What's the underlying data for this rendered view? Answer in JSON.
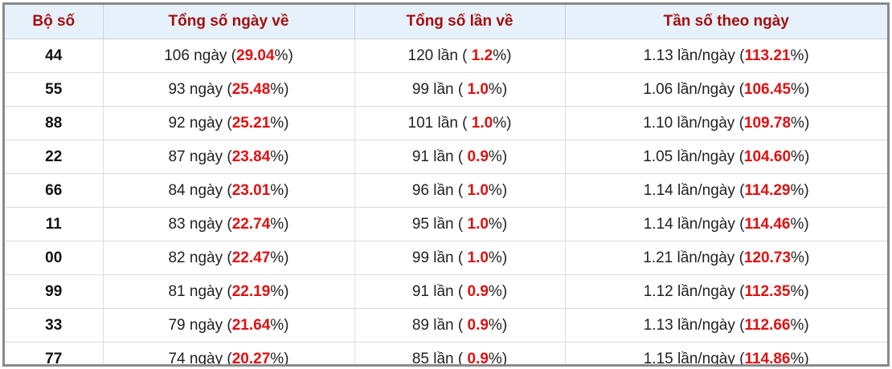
{
  "table": {
    "header": [
      "Bộ số",
      "Tổng số ngày về",
      "Tổng số lần về",
      "Tần số theo ngày"
    ],
    "rows": [
      [
        "44",
        {
          "pre": "106 ngày (",
          "hi": "29.04",
          "post": "%)"
        },
        {
          "pre": "120 lần ( ",
          "hi": "1.2",
          "post": "%)"
        },
        {
          "pre": "1.13 lần/ngày (",
          "hi": "113.21",
          "post": "%)"
        }
      ],
      [
        "55",
        {
          "pre": "93 ngày (",
          "hi": "25.48",
          "post": "%)"
        },
        {
          "pre": "99 lần ( ",
          "hi": "1.0",
          "post": "%)"
        },
        {
          "pre": "1.06 lần/ngày (",
          "hi": "106.45",
          "post": "%)"
        }
      ],
      [
        "88",
        {
          "pre": "92 ngày (",
          "hi": "25.21",
          "post": "%)"
        },
        {
          "pre": "101 lần ( ",
          "hi": "1.0",
          "post": "%)"
        },
        {
          "pre": "1.10 lần/ngày (",
          "hi": "109.78",
          "post": "%)"
        }
      ],
      [
        "22",
        {
          "pre": "87 ngày (",
          "hi": "23.84",
          "post": "%)"
        },
        {
          "pre": "91 lần ( ",
          "hi": "0.9",
          "post": "%)"
        },
        {
          "pre": "1.05 lần/ngày (",
          "hi": "104.60",
          "post": "%)"
        }
      ],
      [
        "66",
        {
          "pre": "84 ngày (",
          "hi": "23.01",
          "post": "%)"
        },
        {
          "pre": "96 lần ( ",
          "hi": "1.0",
          "post": "%)"
        },
        {
          "pre": "1.14 lần/ngày (",
          "hi": "114.29",
          "post": "%)"
        }
      ],
      [
        "11",
        {
          "pre": "83 ngày (",
          "hi": "22.74",
          "post": "%)"
        },
        {
          "pre": "95 lần ( ",
          "hi": "1.0",
          "post": "%)"
        },
        {
          "pre": "1.14 lần/ngày (",
          "hi": "114.46",
          "post": "%)"
        }
      ],
      [
        "00",
        {
          "pre": "82 ngày (",
          "hi": "22.47",
          "post": "%)"
        },
        {
          "pre": "99 lần ( ",
          "hi": "1.0",
          "post": "%)"
        },
        {
          "pre": "1.21 lần/ngày (",
          "hi": "120.73",
          "post": "%)"
        }
      ],
      [
        "99",
        {
          "pre": "81 ngày (",
          "hi": "22.19",
          "post": "%)"
        },
        {
          "pre": "91 lần ( ",
          "hi": "0.9",
          "post": "%)"
        },
        {
          "pre": "1.12 lần/ngày (",
          "hi": "112.35",
          "post": "%)"
        }
      ],
      [
        "33",
        {
          "pre": "79 ngày (",
          "hi": "21.64",
          "post": "%)"
        },
        {
          "pre": "89 lần ( ",
          "hi": "0.9",
          "post": "%)"
        },
        {
          "pre": "1.13 lần/ngày (",
          "hi": "112.66",
          "post": "%)"
        }
      ],
      [
        "77",
        {
          "pre": "74 ngày (",
          "hi": "20.27",
          "post": "%)"
        },
        {
          "pre": "85 lần ( ",
          "hi": "0.9",
          "post": "%)"
        },
        {
          "pre": "1.15 lần/ngày (",
          "hi": "114.86",
          "post": "%)"
        }
      ]
    ]
  }
}
